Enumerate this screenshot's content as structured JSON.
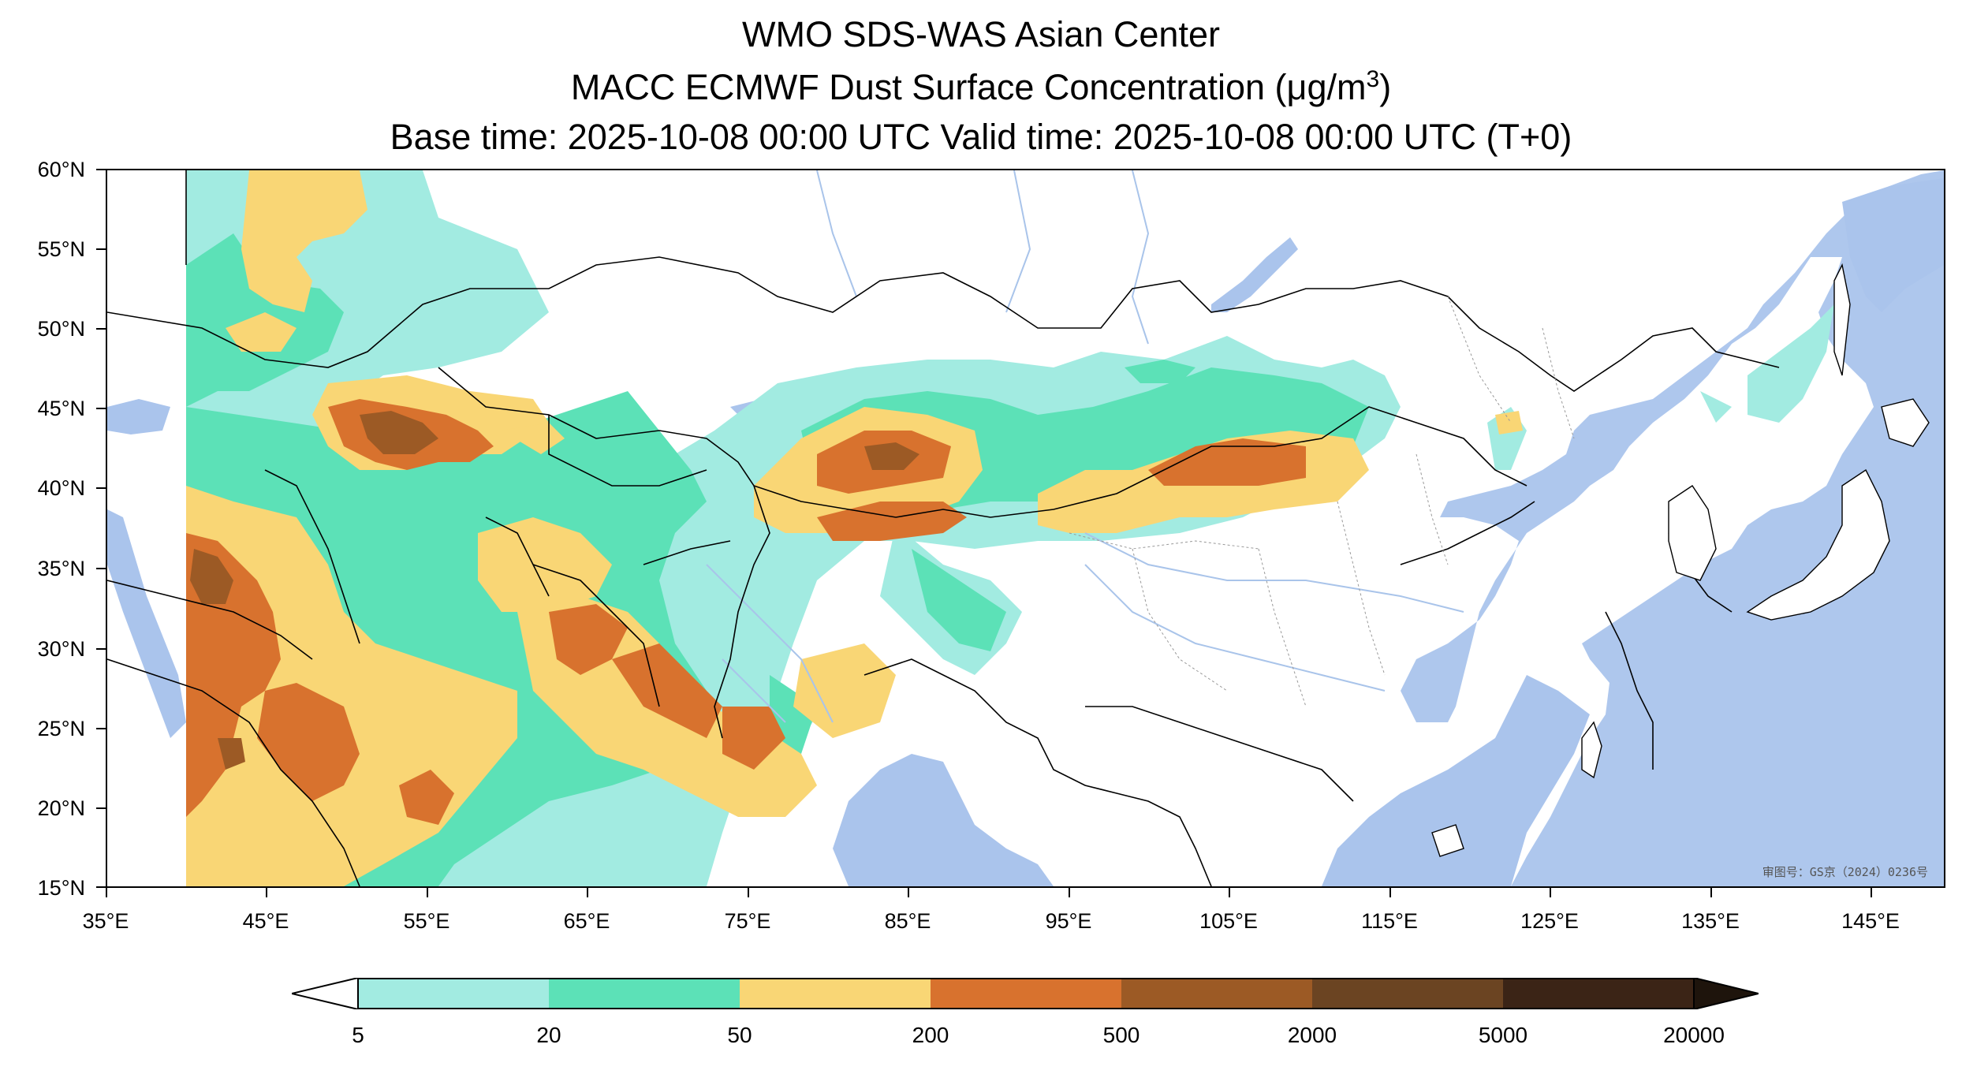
{
  "title": {
    "line1": "WMO SDS-WAS Asian Center",
    "line2_prefix": "MACC ECMWF Dust Surface Concentration (",
    "line2_unit": "μg/m",
    "line2_sup": "3",
    "line2_suffix": ")",
    "line3": "Base time: 2025-10-08 00:00 UTC Valid time: 2025-10-08 00:00 UTC (T+0)"
  },
  "map": {
    "lat_labels": [
      "60°N",
      "55°N",
      "50°N",
      "45°N",
      "40°N",
      "35°N",
      "30°N",
      "25°N",
      "20°N",
      "15°N"
    ],
    "lon_labels": [
      "35°E",
      "45°E",
      "55°E",
      "65°E",
      "75°E",
      "85°E",
      "95°E",
      "105°E",
      "115°E",
      "125°E",
      "135°E",
      "145°E"
    ],
    "credit": "审图号：GS京（2024）0236号",
    "colors": {
      "ocean": "#aac4ec",
      "land": "#ffffff",
      "border": "#000000",
      "river": "#a9c4ea"
    }
  },
  "colorbar": {
    "labels": [
      "5",
      "20",
      "50",
      "200",
      "500",
      "2000",
      "5000",
      "20000"
    ],
    "colors": [
      "#a2ebe1",
      "#5ce1b7",
      "#f9d675",
      "#d8722e",
      "#9c5a25",
      "#6b4422",
      "#3b2416"
    ],
    "under_color": "#ffffff",
    "over_color": "#1e140c"
  }
}
